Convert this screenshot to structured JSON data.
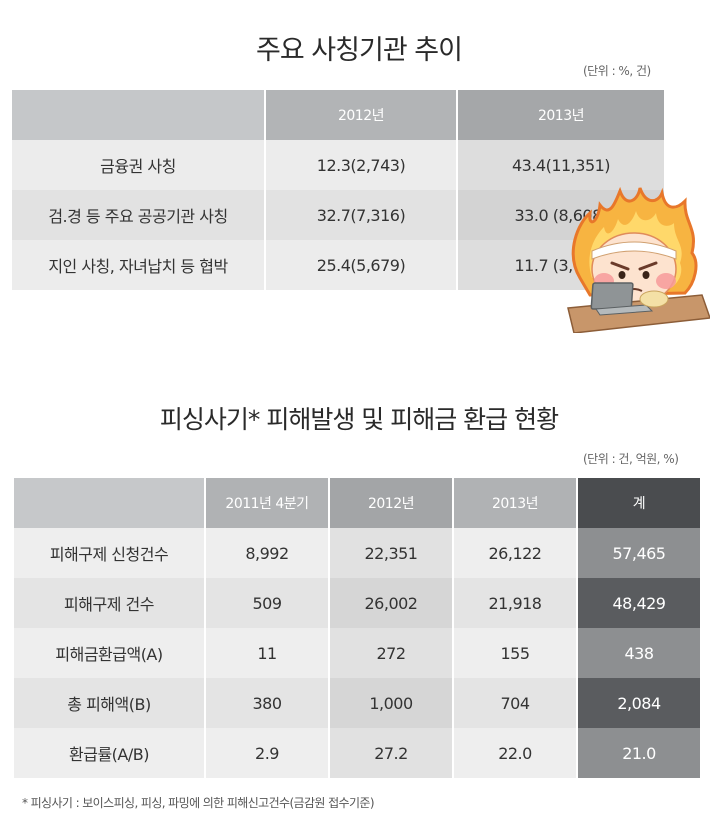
{
  "section1": {
    "title": "주요 사칭기관 추이",
    "unit": "(단위 : %, 건)",
    "headers": [
      "",
      "2012년",
      "2013년"
    ],
    "rows": [
      [
        "금융권 사칭",
        "12.3(2,743)",
        "43.4(11,351)"
      ],
      [
        "검.경 등 주요 공공기관 사칭",
        "32.7(7,316)",
        "33.0 (8,608)"
      ],
      [
        "지인 사칭, 자녀납치 등 협박",
        "25.4(5,679)",
        "11.7 (3,057)"
      ]
    ]
  },
  "section2": {
    "title": "피싱사기* 피해발생 및 피해금 환급 현황",
    "unit": "(단위 : 건, 억원, %)",
    "headers": [
      "",
      "2011년 4분기",
      "2012년",
      "2013년",
      "계"
    ],
    "rows": [
      [
        "피해구제 신청건수",
        "8,992",
        "22,351",
        "26,122",
        "57,465"
      ],
      [
        "피해구제 건수",
        "509",
        "26,002",
        "21,918",
        "48,429"
      ],
      [
        "피해금환급액(A)",
        "11",
        "272",
        "155",
        "438"
      ],
      [
        "총 피해액(B)",
        "380",
        "1,000",
        "704",
        "2,084"
      ],
      [
        "환급률(A/B)",
        "2.9",
        "27.2",
        "22.0",
        "21.0"
      ]
    ]
  },
  "footnote": "* 피싱사기 : 보이스피싱, 피싱, 파밍에 의한 피해신고건수(금감원 접수기준)",
  "colors": {
    "header_dark": "#4a4c4f",
    "total_col": "#8d8f91",
    "flame": "#f39a2c"
  }
}
